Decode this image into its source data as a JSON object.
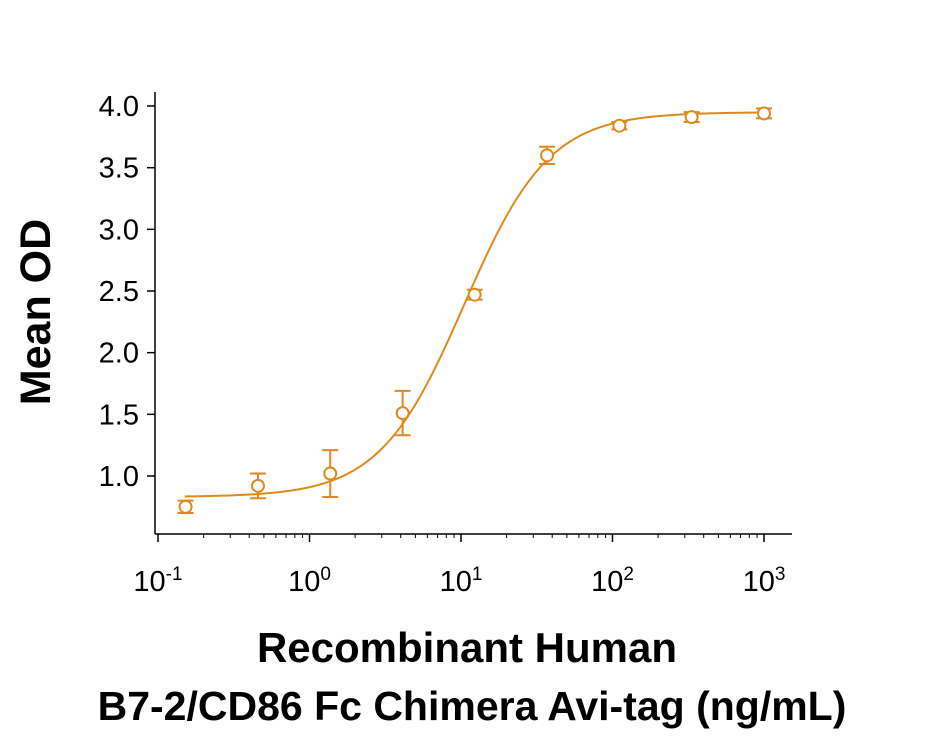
{
  "chart_data": {
    "type": "scatter",
    "ylabel": "Mean OD",
    "xlabel_lines": [
      "Recombinant Human",
      "B7-2/CD86 Fc Chimera Avi-tag (ng/mL)"
    ],
    "x_scale": "log",
    "xlim": [
      0.1,
      1000
    ],
    "ylim": [
      0.65,
      4.05
    ],
    "y_ticks": [
      1.0,
      1.5,
      2.0,
      2.5,
      3.0,
      3.5,
      4.0
    ],
    "y_tick_labels": [
      "1.0",
      "1.5",
      "2.0",
      "2.5",
      "3.0",
      "3.5",
      "4.0"
    ],
    "x_ticks": [
      0.1,
      1,
      10,
      100,
      1000
    ],
    "x_tick_labels": [
      {
        "base": "10",
        "exp": "-1"
      },
      {
        "base": "10",
        "exp": "0"
      },
      {
        "base": "10",
        "exp": "1"
      },
      {
        "base": "10",
        "exp": "2"
      },
      {
        "base": "10",
        "exp": "3"
      }
    ],
    "grid": false,
    "color": "#E08A1E",
    "series": [
      {
        "x": [
          0.152,
          0.457,
          1.37,
          4.12,
          12.3,
          37.0,
          111,
          333,
          1000
        ],
        "y": [
          0.75,
          0.92,
          1.02,
          1.51,
          2.47,
          3.6,
          3.84,
          3.91,
          3.94
        ],
        "err": [
          0.05,
          0.1,
          0.19,
          0.18,
          0.04,
          0.07,
          0.03,
          0.04,
          0.04
        ]
      }
    ],
    "fit": {
      "model": "4PL",
      "bottom": 0.83,
      "top": 3.95,
      "ec50": 10.5,
      "hill": 1.55
    }
  }
}
